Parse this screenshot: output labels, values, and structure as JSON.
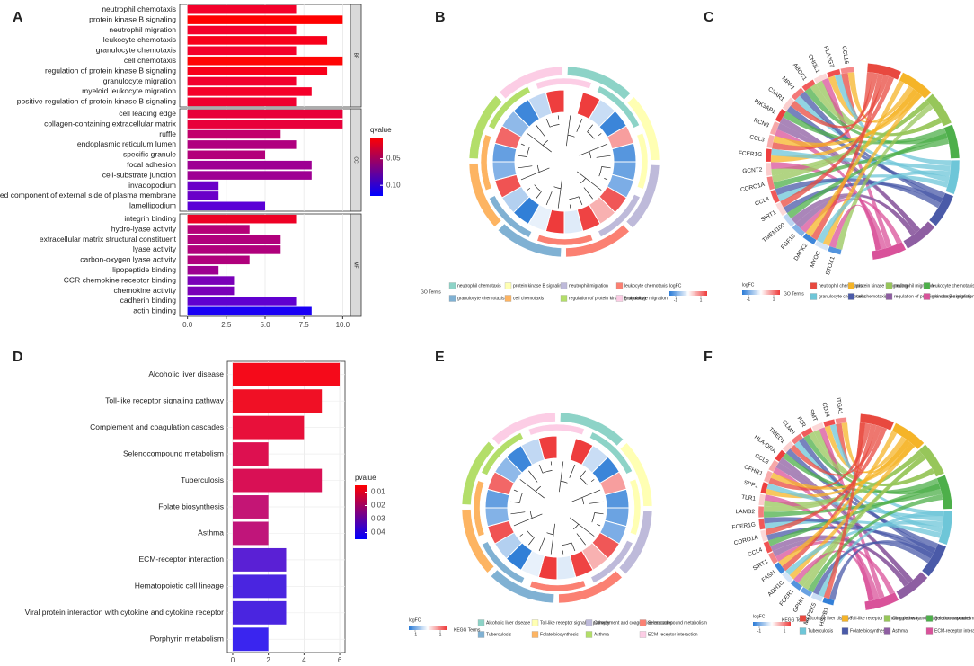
{
  "chart_data": [
    {
      "panel": "A",
      "type": "faceted_bar",
      "facets": [
        {
          "name": "BP",
          "categories": [
            "neutrophil chemotaxis",
            "protein kinase B signaling",
            "neutrophil migration",
            "leukocyte chemotaxis",
            "granulocyte chemotaxis",
            "cell chemotaxis",
            "regulation of protein kinase B signaling",
            "granulocyte migration",
            "myeloid leukocyte migration",
            "positive regulation of protein kinase B signaling"
          ],
          "values": [
            7,
            10,
            7,
            9,
            7,
            10,
            9,
            7,
            8,
            7
          ],
          "colors": [
            "#f4002a",
            "#ff0000",
            "#f4002a",
            "#f8001a",
            "#f4002a",
            "#ff0505",
            "#f8001a",
            "#f2002e",
            "#f5002a",
            "#f0002f"
          ]
        },
        {
          "name": "CC",
          "categories": [
            "cell leading edge",
            "collagen-containing extracellular matrix",
            "ruffle",
            "endoplasmic reticulum lumen",
            "specific granule",
            "focal adhesion",
            "cell-substrate junction",
            "invadopodium",
            "anchored component of external side of plasma membrane",
            "lamellipodium"
          ],
          "values": [
            10,
            10,
            6,
            7,
            5,
            8,
            8,
            2,
            2,
            5
          ],
          "colors": [
            "#e8003a",
            "#e8003a",
            "#c2006b",
            "#b0007f",
            "#b3007a",
            "#9e0093",
            "#9e0093",
            "#6a00c8",
            "#6a00c8",
            "#5a00d6"
          ]
        },
        {
          "name": "MF",
          "categories": [
            "integrin binding",
            "hydro-lyase activity",
            "extracellular matrix structural constituent",
            "lyase activity",
            "carbon-oxygen lyase activity",
            "lipopeptide binding",
            "CCR chemokine receptor binding",
            "chemokine activity",
            "cadherin binding",
            "actin binding"
          ],
          "values": [
            7,
            4,
            6,
            6,
            4,
            2,
            3,
            3,
            7,
            8
          ],
          "colors": [
            "#ee0025",
            "#b50078",
            "#b0007c",
            "#b0007c",
            "#b0007c",
            "#9d0090",
            "#7a00b8",
            "#7a00b8",
            "#6000cf",
            "#1a00f5"
          ]
        }
      ],
      "xlim": [
        -0.5,
        10.5
      ],
      "xticks": [
        {
          "value": 0,
          "label": "0.0"
        },
        2.5,
        {
          "value": 5,
          "label": "5.0"
        },
        7.5,
        {
          "value": 10,
          "label": "10.0"
        }
      ],
      "legend": {
        "title": "qvalue",
        "colors": [
          "#ff0000",
          "#0000ff"
        ],
        "range": [
          0.01,
          0.12
        ],
        "ticks": [
          0.05,
          {
            "value": 0.1,
            "label": "0.10"
          }
        ]
      }
    },
    {
      "panel": "B",
      "type": "go_circle",
      "terms_title": "GO Terms",
      "terms": [
        {
          "name": "neutrophil chemotaxis",
          "color": "#8dd3c7"
        },
        {
          "name": "protein kinase B signaling",
          "color": "#ffffb3"
        },
        {
          "name": "neutrophil migration",
          "color": "#bebada"
        },
        {
          "name": "leukocyte chemotaxis",
          "color": "#fb8072"
        },
        {
          "name": "granulocyte chemotaxis",
          "color": "#80b1d3"
        },
        {
          "name": "cell chemotaxis",
          "color": "#fdb462"
        },
        {
          "name": "regulation of protein kinase B signaling",
          "color": "#b3de69"
        },
        {
          "name": "granulocyte migration",
          "color": "#fccde5"
        }
      ],
      "colorbar": {
        "title": "logFC",
        "colors": [
          "#2b7bd6",
          "#ffffff",
          "#ee3b3b"
        ],
        "range": [
          -1.5,
          1.5
        ],
        "ticks": [
          -1,
          1
        ]
      }
    },
    {
      "panel": "C",
      "type": "chord",
      "genes": [
        "CCL16",
        "PLA2G7",
        "CHI3L1",
        "ABCC1",
        "MPP1",
        "C3AR1",
        "PIK3AP1",
        "RCN3",
        "CCL3",
        "FCER1G",
        "GCNT2",
        "CORO1A",
        "CCL4",
        "SIRT1",
        "TMEM100",
        "FGF10",
        "DAPK2",
        "MYOC",
        "STOX1"
      ],
      "terms_title": "GO Terms",
      "terms": [
        {
          "name": "neutrophil chemotaxis",
          "color": "#e8493f"
        },
        {
          "name": "protein kinase B signaling",
          "color": "#f5b428"
        },
        {
          "name": "neutrophil migration",
          "color": "#97c65a"
        },
        {
          "name": "leukocyte chemotaxis",
          "color": "#4daf4a"
        },
        {
          "name": "granulocyte chemotaxis",
          "color": "#6ec6d8"
        },
        {
          "name": "cell chemotaxis",
          "color": "#4a5aa8"
        },
        {
          "name": "regulation of protein kinase B signaling",
          "color": "#8e5ea2"
        },
        {
          "name": "granulocyte migration",
          "color": "#d9529a"
        }
      ],
      "colorbar": {
        "title": "logFC",
        "colors": [
          "#2b7bd6",
          "#ffffff",
          "#ee3b3b"
        ],
        "range": [
          -1.5,
          1.5
        ],
        "ticks": [
          -1,
          1
        ]
      }
    },
    {
      "panel": "D",
      "type": "bar",
      "categories": [
        "Alcoholic liver disease",
        "Toll-like receptor signaling pathway",
        "Complement and coagulation cascades",
        "Selenocompound metabolism",
        "Tuberculosis",
        "Folate biosynthesis",
        "Asthma",
        "ECM-receptor interaction",
        "Hematopoietic cell lineage",
        "Viral protein interaction with cytokine and cytokine receptor",
        "Porphyrin metabolism"
      ],
      "values": [
        6,
        5,
        4,
        2,
        5,
        2,
        2,
        3,
        3,
        3,
        2
      ],
      "colors": [
        "#f50a1a",
        "#f01025",
        "#e8103a",
        "#dd1050",
        "#d91055",
        "#c41575",
        "#c0157a",
        "#5a20d5",
        "#4a25e0",
        "#4a25e0",
        "#3a25ef"
      ],
      "xlim": [
        -0.3,
        6.3
      ],
      "xticks": [
        0,
        2,
        4,
        6
      ],
      "legend": {
        "title": "pvalue",
        "colors": [
          "#ff0000",
          "#0000ff"
        ],
        "range": [
          0.005,
          0.045
        ],
        "ticks": [
          0.01,
          0.02,
          0.03,
          0.04
        ]
      }
    },
    {
      "panel": "E",
      "type": "go_circle",
      "terms_title": "KEGG Terms",
      "terms": [
        {
          "name": "Alcoholic liver disease",
          "color": "#8dd3c7"
        },
        {
          "name": "Toll-like receptor signaling pathway",
          "color": "#ffffb3"
        },
        {
          "name": "Complement and coagulation cascades",
          "color": "#bebada"
        },
        {
          "name": "Selenocompound metabolism",
          "color": "#fb8072"
        },
        {
          "name": "Tuberculosis",
          "color": "#80b1d3"
        },
        {
          "name": "Folate biosynthesis",
          "color": "#fdb462"
        },
        {
          "name": "Asthma",
          "color": "#b3de69"
        },
        {
          "name": "ECM-receptor interaction",
          "color": "#fccde5"
        }
      ],
      "colorbar": {
        "title": "logFC",
        "colors": [
          "#2b7bd6",
          "#ffffff",
          "#ee3b3b"
        ],
        "range": [
          -1.5,
          1.5
        ],
        "ticks": [
          -1,
          1
        ]
      }
    },
    {
      "panel": "F",
      "type": "chord",
      "genes": [
        "ITGA1",
        "CD14",
        "SMT",
        "F2R",
        "CLMN",
        "TMED1",
        "HLA-DRA",
        "CCL3",
        "CFHR1",
        "SPP1",
        "TLR1",
        "LAMB2",
        "FCER1G",
        "CORO1A",
        "CCL4",
        "SIRT1",
        "FASN",
        "ADH1C",
        "FCER1",
        "GPHN",
        "MAP2K5",
        "HSPB1"
      ],
      "terms_title": "KEGG Terms",
      "terms": [
        {
          "name": "Alcoholic liver disease",
          "color": "#e8493f"
        },
        {
          "name": "Toll-like receptor signaling pathway",
          "color": "#f5b428"
        },
        {
          "name": "Complement and coagulation cascades",
          "color": "#97c65a"
        },
        {
          "name": "Selenocompound metabolism",
          "color": "#4daf4a"
        },
        {
          "name": "Tuberculosis",
          "color": "#6ec6d8"
        },
        {
          "name": "Folate biosynthesis",
          "color": "#4a5aa8"
        },
        {
          "name": "Asthma",
          "color": "#8e5ea2"
        },
        {
          "name": "ECM-receptor interaction",
          "color": "#d9529a"
        }
      ],
      "colorbar": {
        "title": "logFC",
        "colors": [
          "#2b7bd6",
          "#ffffff",
          "#ee3b3b"
        ],
        "range": [
          -1.5,
          1.5
        ],
        "ticks": [
          -1,
          1
        ]
      }
    }
  ]
}
